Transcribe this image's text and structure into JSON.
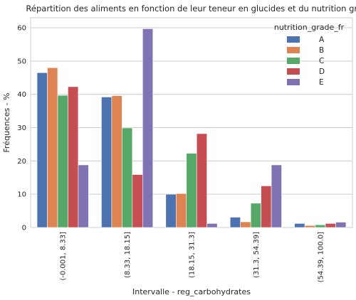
{
  "chart_data": {
    "type": "bar",
    "title": "Répartition des aliments en fonction de leur teneur en glucides et du nutrition grade",
    "xlabel": "Intervalle - reg_carbohydrates",
    "ylabel": "Fréquences - %",
    "categories": [
      "(-0.001, 8.33]",
      "(8.33, 18.15]",
      "(18.15, 31.3]",
      "(31.3, 54.39]",
      "(54.39, 100.0]"
    ],
    "ylim": [
      0,
      63
    ],
    "yticks": [
      0,
      10,
      20,
      30,
      40,
      50,
      60
    ],
    "grid": true,
    "legend": {
      "title": "nutrition_grade_fr",
      "placement": "top-right"
    },
    "series": [
      {
        "name": "A",
        "color": "#4c72b0",
        "values": [
          46.5,
          39.2,
          10.0,
          3.1,
          1.2
        ]
      },
      {
        "name": "B",
        "color": "#dd8452",
        "values": [
          48.0,
          39.6,
          10.2,
          1.7,
          0.6
        ]
      },
      {
        "name": "C",
        "color": "#55a868",
        "values": [
          39.7,
          29.9,
          22.3,
          7.3,
          0.8
        ]
      },
      {
        "name": "D",
        "color": "#c44e52",
        "values": [
          42.3,
          15.9,
          28.2,
          12.5,
          1.2
        ]
      },
      {
        "name": "E",
        "color": "#8172b3",
        "values": [
          18.8,
          59.7,
          1.2,
          18.8,
          1.6
        ]
      }
    ]
  }
}
